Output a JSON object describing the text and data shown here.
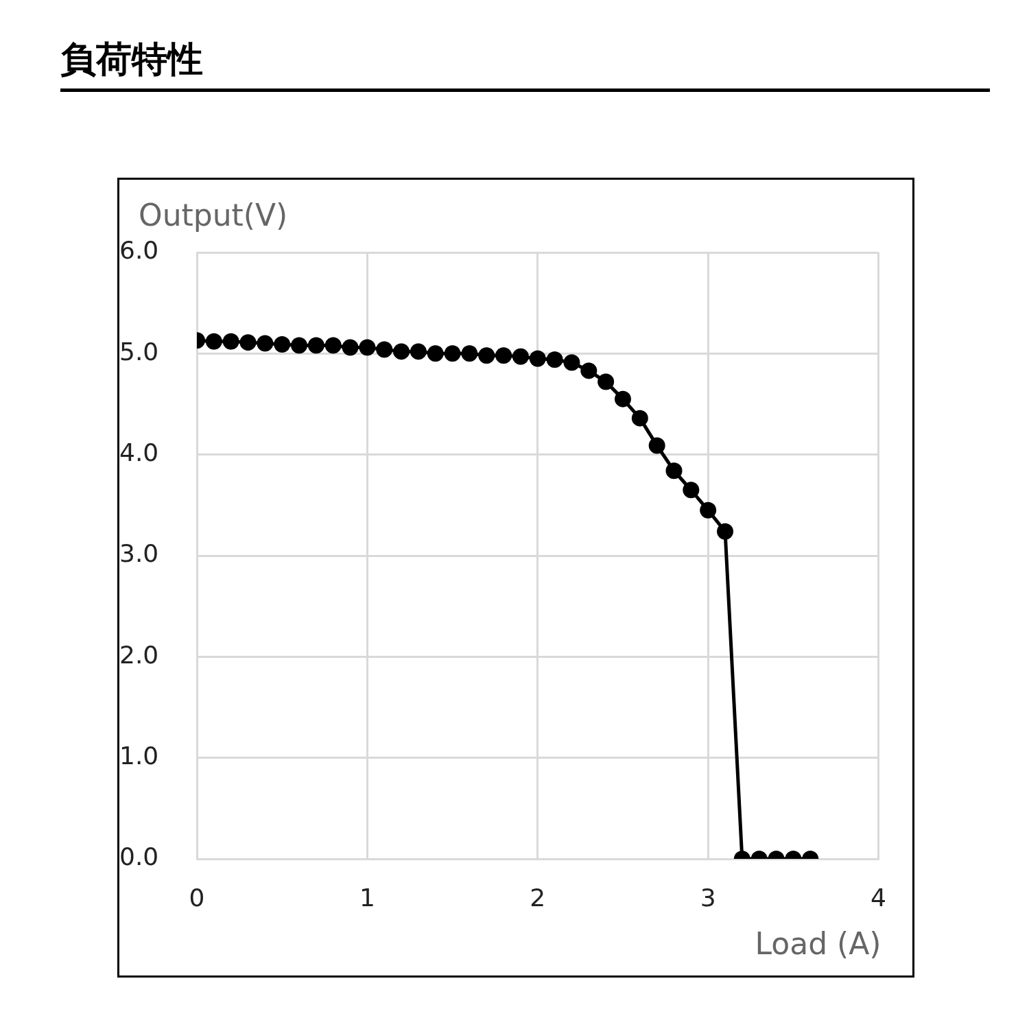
{
  "chart_data": {
    "type": "line",
    "title": "負荷特性",
    "xlabel": "Load (A)",
    "ylabel": "Output(V)",
    "x": [
      0,
      0.1,
      0.2,
      0.3,
      0.4,
      0.5,
      0.6,
      0.7,
      0.8,
      0.9,
      1.0,
      1.1,
      1.2,
      1.3,
      1.4,
      1.5,
      1.6,
      1.7,
      1.8,
      1.9,
      2.0,
      2.1,
      2.2,
      2.3,
      2.4,
      2.5,
      2.6,
      2.7,
      2.8,
      2.9,
      3.0,
      3.1,
      3.2,
      3.3,
      3.4,
      3.5,
      3.6
    ],
    "series": [
      {
        "color": "#000000",
        "values": [
          5.13,
          5.12,
          5.12,
          5.11,
          5.1,
          5.09,
          5.08,
          5.08,
          5.08,
          5.06,
          5.06,
          5.04,
          5.02,
          5.02,
          5.0,
          5.0,
          5.0,
          4.98,
          4.98,
          4.97,
          4.95,
          4.94,
          4.91,
          4.83,
          4.72,
          4.55,
          4.36,
          4.09,
          3.84,
          3.65,
          3.45,
          3.24,
          0,
          0,
          0,
          0,
          0
        ]
      }
    ],
    "xlim": [
      0,
      4
    ],
    "xticks": [
      0,
      1,
      2,
      3,
      4
    ],
    "ylim": [
      0,
      6
    ],
    "yticks": [
      {
        "value": 0,
        "label": "0.0"
      },
      {
        "value": 1,
        "label": "1.0"
      },
      {
        "value": 2,
        "label": "2.0"
      },
      {
        "value": 3,
        "label": "3.0"
      },
      {
        "value": 4,
        "label": "4.0"
      },
      {
        "value": 5,
        "label": "5.0"
      },
      {
        "value": 6,
        "label": "6.0"
      }
    ],
    "grid": true,
    "legend": false,
    "marker": "circle",
    "line_style": "solid"
  }
}
